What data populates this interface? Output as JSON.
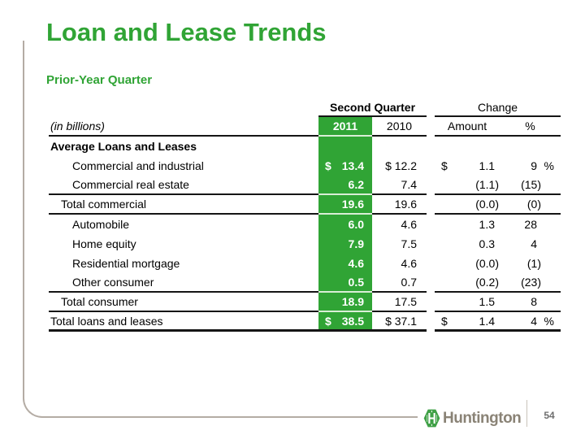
{
  "slide": {
    "title": "Loan and Lease Trends",
    "subtitle": "Prior-Year Quarter"
  },
  "table": {
    "group_headers": {
      "second_quarter": "Second Quarter",
      "change": "Change"
    },
    "unit_label": "(in billions)",
    "col_headers": {
      "y2011": "2011",
      "y2010": "2010",
      "amount": "Amount",
      "pct": "%"
    },
    "rows": [
      {
        "label": "Average Loans and Leases",
        "indent": 0,
        "bold": true,
        "y2011": null,
        "y2010": "",
        "amount": null,
        "pct": null,
        "rule": "none"
      },
      {
        "label": "Commercial and industrial",
        "indent": 2,
        "bold": false,
        "y2011": {
          "prefix": "$",
          "value": "13.4"
        },
        "y2010": "$ 12.2",
        "amount": {
          "prefix": "$",
          "value": "1.1"
        },
        "pct": {
          "value": "9",
          "suffix": "%"
        },
        "rule": "none"
      },
      {
        "label": "Commercial real estate",
        "indent": 2,
        "bold": false,
        "y2011": {
          "value": "6.2"
        },
        "y2010": "7.4",
        "amount": {
          "value": "(1.1)"
        },
        "pct": {
          "value": "(15)"
        },
        "rule": "thin"
      },
      {
        "label": "Total commercial",
        "indent": 1,
        "bold": false,
        "y2011": {
          "value": "19.6"
        },
        "y2010": "19.6",
        "amount": {
          "value": "(0.0)"
        },
        "pct": {
          "value": "(0)"
        },
        "rule": "thin"
      },
      {
        "label": "Automobile",
        "indent": 2,
        "bold": false,
        "y2011": {
          "value": "6.0"
        },
        "y2010": "4.6",
        "amount": {
          "value": "1.3"
        },
        "pct": {
          "value": "28"
        },
        "rule": "none"
      },
      {
        "label": "Home equity",
        "indent": 2,
        "bold": false,
        "y2011": {
          "value": "7.9"
        },
        "y2010": "7.5",
        "amount": {
          "value": "0.3"
        },
        "pct": {
          "value": "4"
        },
        "rule": "none"
      },
      {
        "label": "Residential mortgage",
        "indent": 2,
        "bold": false,
        "y2011": {
          "value": "4.6"
        },
        "y2010": "4.6",
        "amount": {
          "value": "(0.0)"
        },
        "pct": {
          "value": "(1)"
        },
        "rule": "none"
      },
      {
        "label": "Other consumer",
        "indent": 2,
        "bold": false,
        "y2011": {
          "value": "0.5"
        },
        "y2010": "0.7",
        "amount": {
          "value": "(0.2)"
        },
        "pct": {
          "value": "(23)"
        },
        "rule": "thin"
      },
      {
        "label": "Total consumer",
        "indent": 1,
        "bold": false,
        "y2011": {
          "value": "18.9"
        },
        "y2010": "17.5",
        "amount": {
          "value": "1.5"
        },
        "pct": {
          "value": "8"
        },
        "rule": "thin"
      },
      {
        "label": "Total loans and leases",
        "indent": 0,
        "bold": false,
        "y2011": {
          "prefix": "$",
          "value": "38.5"
        },
        "y2010": "$ 37.1",
        "amount": {
          "prefix": "$",
          "value": "1.4"
        },
        "pct": {
          "value": "4",
          "suffix": "%"
        },
        "rule": "thick"
      }
    ]
  },
  "footer": {
    "logo_text": "Huntington",
    "page_number": "54"
  },
  "colors": {
    "accent_green": "#30a435",
    "logo_green": "#3fa046",
    "logo_text": "#8a8376",
    "border_gray": "#b4aca4",
    "rule_black": "#151515"
  }
}
